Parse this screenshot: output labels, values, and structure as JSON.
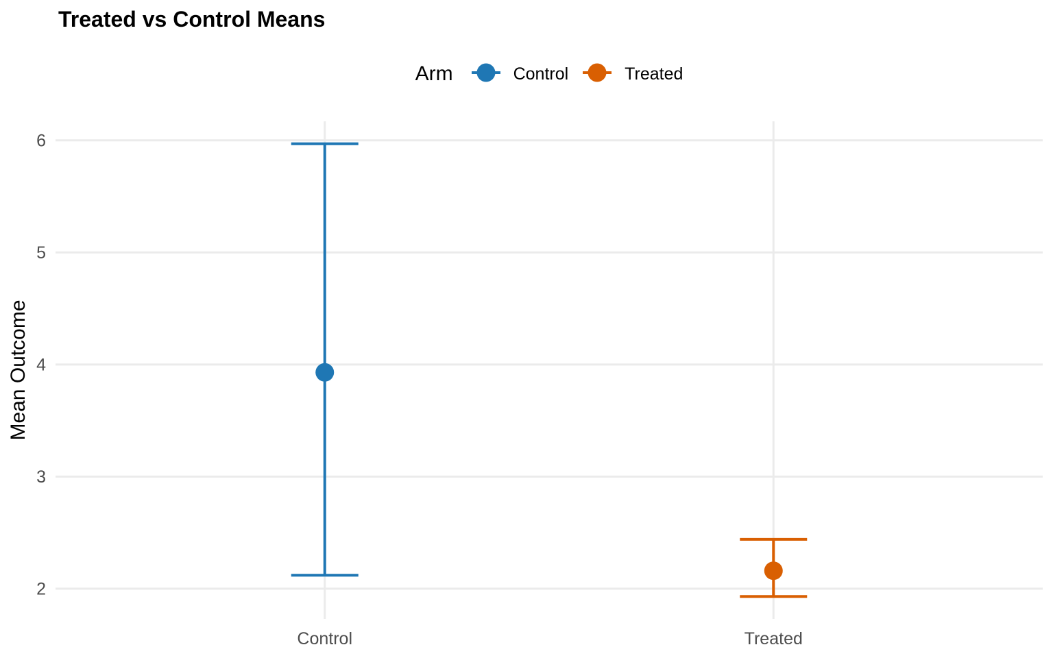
{
  "figure": {
    "title": "Treated vs Control Means"
  },
  "legend": {
    "title": "Arm",
    "position": "top",
    "items": [
      {
        "label": "Control",
        "color": "#1F77B4"
      },
      {
        "label": "Treated",
        "color": "#D95F02"
      }
    ]
  },
  "axes": {
    "y_title": "Mean Outcome",
    "x_title": ""
  },
  "chart_data": {
    "type": "pointrange",
    "title": "Treated vs Control Means",
    "xlabel": "",
    "ylabel": "Mean Outcome",
    "categories": [
      "Control",
      "Treated"
    ],
    "series": [
      {
        "name": "Control",
        "color": "#1F77B4",
        "mean": 3.93,
        "lower": 2.12,
        "upper": 5.97
      },
      {
        "name": "Treated",
        "color": "#D95F02",
        "mean": 2.16,
        "lower": 1.93,
        "upper": 2.44
      }
    ],
    "yticks": [
      2,
      3,
      4,
      5,
      6
    ],
    "ylim": [
      1.73,
      6.17
    ],
    "grid": "major-only",
    "grid_color": "#EBEBEB",
    "axis_text_color": "#4D4D4D",
    "legend_title": "Arm",
    "legend_position": "top"
  }
}
